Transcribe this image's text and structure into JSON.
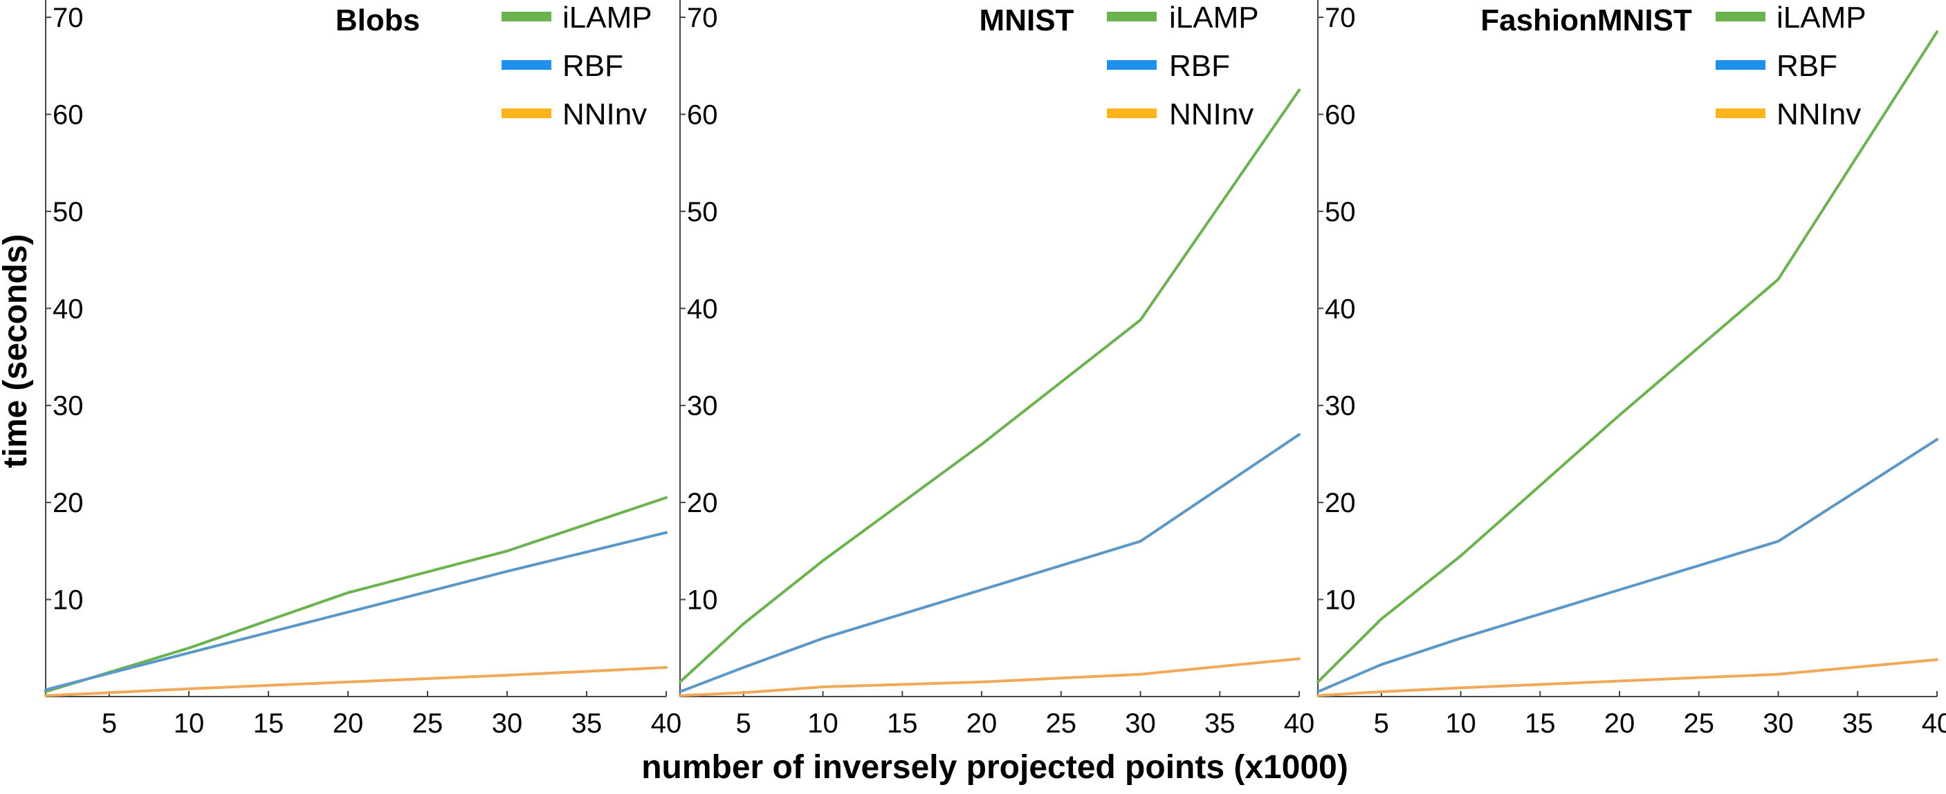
{
  "chart_data": {
    "type": "line",
    "xlabel": "number of inversely projected points (x1000)",
    "ylabel": "time (seconds)",
    "x_ticks": [
      "5",
      "10",
      "15",
      "20",
      "25",
      "30",
      "35",
      "40"
    ],
    "y_ticks": [
      "10",
      "20",
      "30",
      "40",
      "50",
      "60",
      "70"
    ],
    "y_top_tick": "70",
    "xlim": [
      1,
      40
    ],
    "ylim": [
      0,
      70
    ],
    "grid": false,
    "legend_position": "top-right",
    "colors": {
      "iLAMP": "#6ab34f",
      "RBF": "#5b98c8",
      "NNInv": "#f0a95a"
    },
    "legend_colors": {
      "iLAMP": "#6ab34f",
      "RBF": "#1e90ee",
      "NNInv": "#ffb31a"
    },
    "panels": [
      {
        "title": "Blobs",
        "series": [
          {
            "name": "iLAMP",
            "x": [
              1,
              5,
              10,
              20,
              30,
              40
            ],
            "y": [
              0.5,
              2.5,
              5,
              10.7,
              15,
              20.5
            ]
          },
          {
            "name": "RBF",
            "x": [
              1,
              5,
              10,
              20,
              30,
              40
            ],
            "y": [
              0.7,
              2.4,
              4.5,
              8.7,
              12.9,
              16.9
            ]
          },
          {
            "name": "NNInv",
            "x": [
              1,
              5,
              10,
              20,
              30,
              40
            ],
            "y": [
              0.1,
              0.4,
              0.8,
              1.5,
              2.2,
              3.0
            ]
          }
        ]
      },
      {
        "title": "MNIST",
        "series": [
          {
            "name": "iLAMP",
            "x": [
              1,
              5,
              10,
              20,
              30,
              40
            ],
            "y": [
              1.5,
              7.5,
              14,
              26,
              38.8,
              62.5
            ]
          },
          {
            "name": "RBF",
            "x": [
              1,
              5,
              10,
              20,
              30,
              40
            ],
            "y": [
              0.5,
              3,
              6,
              11,
              16,
              27
            ]
          },
          {
            "name": "NNInv",
            "x": [
              1,
              5,
              10,
              20,
              30,
              40
            ],
            "y": [
              0.1,
              0.4,
              1.0,
              1.5,
              2.3,
              3.9
            ]
          }
        ]
      },
      {
        "title": "FashionMNIST",
        "series": [
          {
            "name": "iLAMP",
            "x": [
              1,
              5,
              10,
              20,
              30,
              40
            ],
            "y": [
              1.5,
              8,
              14.5,
              29,
              43,
              68.5
            ]
          },
          {
            "name": "RBF",
            "x": [
              1,
              5,
              10,
              20,
              30,
              40
            ],
            "y": [
              0.5,
              3.3,
              6,
              11,
              16,
              26.5
            ]
          },
          {
            "name": "NNInv",
            "x": [
              1,
              5,
              10,
              20,
              30,
              40
            ],
            "y": [
              0.1,
              0.5,
              0.9,
              1.6,
              2.3,
              3.8
            ]
          }
        ]
      }
    ]
  }
}
